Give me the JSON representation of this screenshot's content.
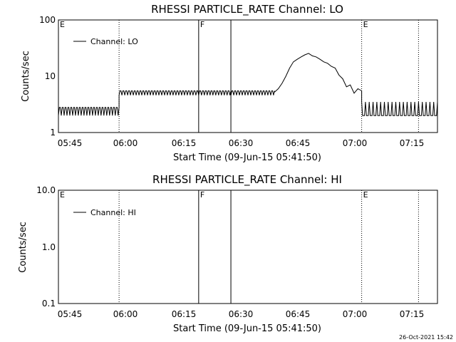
{
  "chart_data": [
    {
      "type": "line",
      "title": "RHESSI PARTICLE_RATE Channel: LO",
      "xlabel": "Start Time (09-Jun-15 05:41:50)",
      "ylabel": "Counts/sec",
      "x_ticks": [
        "05:45",
        "06:00",
        "06:15",
        "06:30",
        "06:45",
        "07:00",
        "07:15"
      ],
      "x_range_min": [
        0,
        100
      ],
      "y_scale": "log",
      "y_ticks": [
        "1",
        "10",
        "100"
      ],
      "ylim": [
        1,
        100
      ],
      "legend": {
        "label": "Channel: LO",
        "placement": "top-left"
      },
      "markers": [
        {
          "label": "E",
          "t": 0,
          "style": "dotted"
        },
        {
          "label": "",
          "t": 16,
          "style": "dotted"
        },
        {
          "label": "F",
          "t": 37,
          "style": "solid"
        },
        {
          "label": "",
          "t": 45.5,
          "style": "solid"
        },
        {
          "label": "E",
          "t": 80,
          "style": "dotted"
        },
        {
          "label": "",
          "t": 95,
          "style": "dotted"
        }
      ],
      "series": [
        {
          "name": "Channel: LO",
          "segments": [
            {
              "t": [
                0,
                16
              ],
              "value": 2,
              "noise_to": 2.8
            },
            {
              "t": [
                16,
                45.5
              ],
              "value": 4.6,
              "noise_to": 5.5
            },
            {
              "t": [
                45.5,
                57
              ],
              "value": 4.6,
              "noise_to": 5.5
            }
          ],
          "points": [
            [
              57,
              5.2
            ],
            [
              58,
              6
            ],
            [
              59,
              7.5
            ],
            [
              60,
              10
            ],
            [
              61,
              14
            ],
            [
              62,
              18
            ],
            [
              63,
              20
            ],
            [
              64,
              22
            ],
            [
              65,
              24
            ],
            [
              66,
              25.5
            ],
            [
              67,
              23
            ],
            [
              68,
              22
            ],
            [
              69,
              20
            ],
            [
              70,
              18
            ],
            [
              71,
              17
            ],
            [
              72,
              15
            ],
            [
              73,
              14
            ],
            [
              74,
              10.5
            ],
            [
              75,
              9
            ],
            [
              76,
              6.5
            ],
            [
              77,
              7
            ],
            [
              78,
              5
            ],
            [
              79,
              6
            ],
            [
              80,
              5.5
            ]
          ],
          "tail": {
            "t": [
              80,
              100
            ],
            "value": 2,
            "noise_to": 3.5
          }
        }
      ]
    },
    {
      "type": "line",
      "title": "RHESSI PARTICLE_RATE Channel: HI",
      "xlabel": "Start Time (09-Jun-15 05:41:50)",
      "ylabel": "Counts/sec",
      "x_ticks": [
        "05:45",
        "06:00",
        "06:15",
        "06:30",
        "06:45",
        "07:00",
        "07:15"
      ],
      "y_scale": "log",
      "y_ticks": [
        "0.1",
        "1.0",
        "10.0"
      ],
      "ylim": [
        0.1,
        10
      ],
      "legend": {
        "label": "Channel: HI",
        "placement": "top-left"
      },
      "markers": [
        {
          "label": "E",
          "t": 0,
          "style": "dotted"
        },
        {
          "label": "",
          "t": 16,
          "style": "dotted"
        },
        {
          "label": "F",
          "t": 37,
          "style": "solid"
        },
        {
          "label": "",
          "t": 45.5,
          "style": "solid"
        },
        {
          "label": "E",
          "t": 80,
          "style": "dotted"
        },
        {
          "label": "",
          "t": 95,
          "style": "dotted"
        }
      ],
      "series": [
        {
          "name": "Channel: HI",
          "points": []
        }
      ]
    }
  ],
  "footer": {
    "timestamp": "26-Oct-2021 15:42"
  }
}
